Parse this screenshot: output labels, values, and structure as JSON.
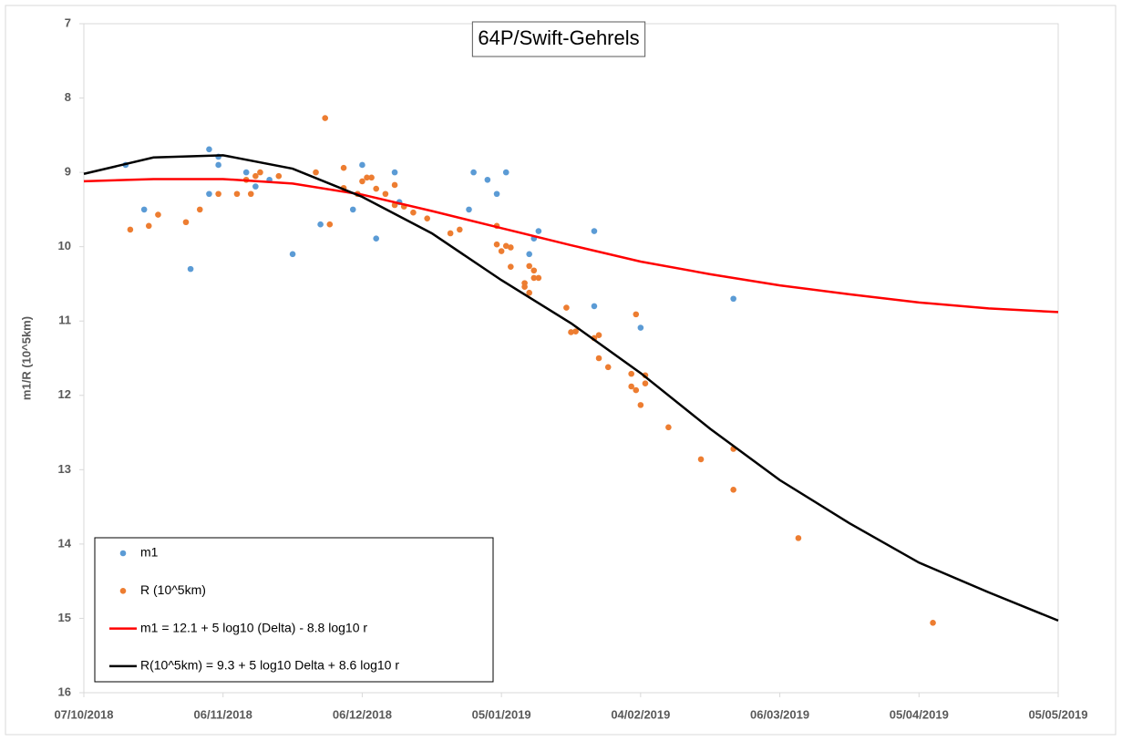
{
  "chart_data": {
    "type": "scatter",
    "title": "64P/Swift-Gehrels",
    "y_label": "m1/R (10^5km)",
    "ylim": [
      7,
      16
    ],
    "y_reversed": true,
    "yticks": [
      7,
      8,
      9,
      10,
      11,
      12,
      13,
      14,
      15,
      16
    ],
    "xlim": [
      "2018-10-07",
      "2019-05-05"
    ],
    "xticks": [
      {
        "value": "2018-10-07",
        "label": "07/10/2018"
      },
      {
        "value": "2018-11-06",
        "label": "06/11/2018"
      },
      {
        "value": "2018-12-06",
        "label": "06/12/2018"
      },
      {
        "value": "2019-01-05",
        "label": "05/01/2019"
      },
      {
        "value": "2019-02-04",
        "label": "04/02/2019"
      },
      {
        "value": "2019-03-06",
        "label": "06/03/2019"
      },
      {
        "value": "2019-04-05",
        "label": "05/04/2019"
      },
      {
        "value": "2019-05-05",
        "label": "05/05/2019"
      }
    ],
    "grid": false,
    "legend": "lower left",
    "series": [
      {
        "name": "m1",
        "color": "#5b9bd5",
        "type": "scatter",
        "x": [
          "2018-10-16",
          "2018-10-20",
          "2018-10-30",
          "2018-11-03",
          "2018-11-03",
          "2018-11-05",
          "2018-11-05",
          "2018-11-11",
          "2018-11-13",
          "2018-11-16",
          "2018-11-21",
          "2018-11-27",
          "2018-12-04",
          "2018-12-05",
          "2018-12-06",
          "2018-12-09",
          "2018-12-13",
          "2018-12-14",
          "2018-12-29",
          "2018-12-30",
          "2019-01-02",
          "2019-01-04",
          "2019-01-06",
          "2019-01-11",
          "2019-01-12",
          "2019-01-13",
          "2019-01-25",
          "2019-01-25",
          "2019-02-04",
          "2019-02-24"
        ],
        "values": [
          8.9,
          9.5,
          10.3,
          8.69,
          9.29,
          8.79,
          8.9,
          9.0,
          9.19,
          9.1,
          10.1,
          9.7,
          9.5,
          9.29,
          8.9,
          9.89,
          9.0,
          9.4,
          9.5,
          9.0,
          9.1,
          9.29,
          9.0,
          10.1,
          9.89,
          9.79,
          9.79,
          10.8,
          11.09,
          10.7
        ]
      },
      {
        "name": "R (10^5km)",
        "color": "#ed7d31",
        "type": "scatter",
        "x": [
          "2018-10-17",
          "2018-10-21",
          "2018-10-23",
          "2018-10-29",
          "2018-11-01",
          "2018-11-05",
          "2018-11-09",
          "2018-11-11",
          "2018-11-12",
          "2018-11-13",
          "2018-11-14",
          "2018-11-18",
          "2018-11-26",
          "2018-11-28",
          "2018-11-29",
          "2018-12-02",
          "2018-12-02",
          "2018-12-05",
          "2018-12-06",
          "2018-12-07",
          "2018-12-08",
          "2018-12-09",
          "2018-12-11",
          "2018-12-13",
          "2018-12-13",
          "2018-12-15",
          "2018-12-17",
          "2018-12-20",
          "2018-12-25",
          "2018-12-27",
          "2019-01-04",
          "2019-01-04",
          "2019-01-05",
          "2019-01-06",
          "2019-01-07",
          "2019-01-07",
          "2019-01-10",
          "2019-01-10",
          "2019-01-11",
          "2019-01-11",
          "2019-01-12",
          "2019-01-12",
          "2019-01-13",
          "2019-01-19",
          "2019-01-20",
          "2019-01-21",
          "2019-01-25",
          "2019-01-26",
          "2019-01-26",
          "2019-01-28",
          "2019-02-02",
          "2019-02-02",
          "2019-02-03",
          "2019-02-03",
          "2019-02-04",
          "2019-02-05",
          "2019-02-05",
          "2019-02-10",
          "2019-02-17",
          "2019-02-24",
          "2019-02-24",
          "2019-03-10",
          "2019-04-08"
        ],
        "values": [
          9.77,
          9.72,
          9.57,
          9.67,
          9.5,
          9.29,
          9.29,
          9.1,
          9.29,
          9.05,
          9.0,
          9.05,
          9.0,
          8.27,
          9.7,
          8.94,
          9.21,
          9.29,
          9.12,
          9.07,
          9.07,
          9.22,
          9.29,
          9.17,
          9.44,
          9.46,
          9.54,
          9.62,
          9.82,
          9.77,
          9.72,
          9.97,
          10.06,
          9.99,
          10.01,
          10.27,
          10.49,
          10.54,
          10.62,
          10.26,
          10.32,
          10.42,
          10.42,
          10.82,
          11.15,
          11.14,
          11.23,
          11.19,
          11.5,
          11.62,
          11.71,
          11.88,
          11.93,
          10.91,
          12.13,
          11.73,
          11.84,
          12.43,
          12.86,
          12.72,
          13.27,
          13.92,
          15.06
        ]
      },
      {
        "name": "m1 = 12.1 + 5 log10 (Delta) - 8.8 log10 r",
        "color": "#ff0000",
        "type": "line",
        "x": [
          "2018-10-07",
          "2018-10-22",
          "2018-11-06",
          "2018-11-21",
          "2018-12-06",
          "2018-12-21",
          "2019-01-05",
          "2019-01-20",
          "2019-02-04",
          "2019-02-19",
          "2019-03-06",
          "2019-03-21",
          "2019-04-05",
          "2019-04-20",
          "2019-05-05"
        ],
        "values": [
          9.12,
          9.09,
          9.09,
          9.15,
          9.3,
          9.52,
          9.75,
          9.98,
          10.2,
          10.37,
          10.52,
          10.64,
          10.75,
          10.83,
          10.88
        ]
      },
      {
        "name": "R(10^5km) = 9.3 + 5 log10 Delta + 8.6 log10 r",
        "color": "#000000",
        "type": "line",
        "x": [
          "2018-10-07",
          "2018-10-22",
          "2018-11-06",
          "2018-11-21",
          "2018-12-06",
          "2018-12-21",
          "2019-01-05",
          "2019-01-20",
          "2019-02-04",
          "2019-02-19",
          "2019-03-06",
          "2019-03-21",
          "2019-04-05",
          "2019-04-20",
          "2019-05-05"
        ],
        "values": [
          9.02,
          8.8,
          8.77,
          8.95,
          9.33,
          9.82,
          10.45,
          11.03,
          11.7,
          12.45,
          13.14,
          13.72,
          14.25,
          14.65,
          15.03
        ]
      }
    ]
  }
}
